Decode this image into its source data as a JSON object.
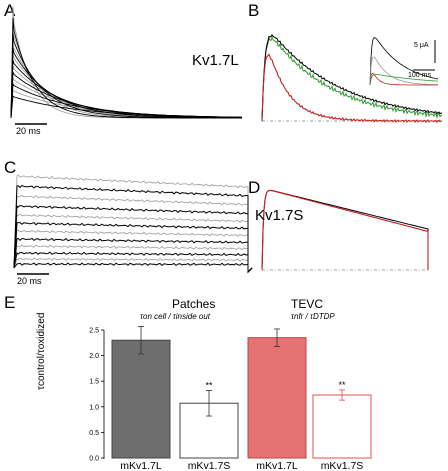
{
  "panels": {
    "a": {
      "letter": "A",
      "scalebar": "20 ms"
    },
    "b": {
      "letter": "B",
      "construct": "Kv1.7L",
      "inset": {
        "scale_y": "5 μA",
        "scale_x": "100 ms"
      }
    },
    "c": {
      "letter": "C",
      "scalebar": "20 ms"
    },
    "d": {
      "letter": "D",
      "construct": "Kv1.7S"
    },
    "e": {
      "letter": "E"
    }
  },
  "colors": {
    "black": "#000000",
    "gray": "#9a9a9a",
    "green": "#2e9a2e",
    "red": "#c42020",
    "dark_bar": "#6e6e6e",
    "pink_bar": "#e57373",
    "pink_outline": "#d9534f",
    "baseline": "#808080"
  },
  "chart_data": {
    "type": "bar",
    "ylabel": "τcontrol/τoxidized",
    "ylim": [
      0,
      2.5
    ],
    "yticks": [
      "0.0",
      "0.5",
      "1.0",
      "1.5",
      "2.0",
      "2.5"
    ],
    "groups": [
      {
        "title": "Patches",
        "subtitle": "τon cell / τinside out"
      },
      {
        "title": "TEVC",
        "subtitle": "τnfr / τDTDP"
      }
    ],
    "categories": [
      "mKv1.7L",
      "mKv1.7S",
      "mKv1.7L",
      "mKv1.7S"
    ],
    "values": [
      2.3,
      1.07,
      2.35,
      1.23
    ],
    "errors": [
      0.27,
      0.25,
      0.17,
      0.1
    ],
    "significance": [
      "",
      "**",
      "",
      "**"
    ]
  }
}
